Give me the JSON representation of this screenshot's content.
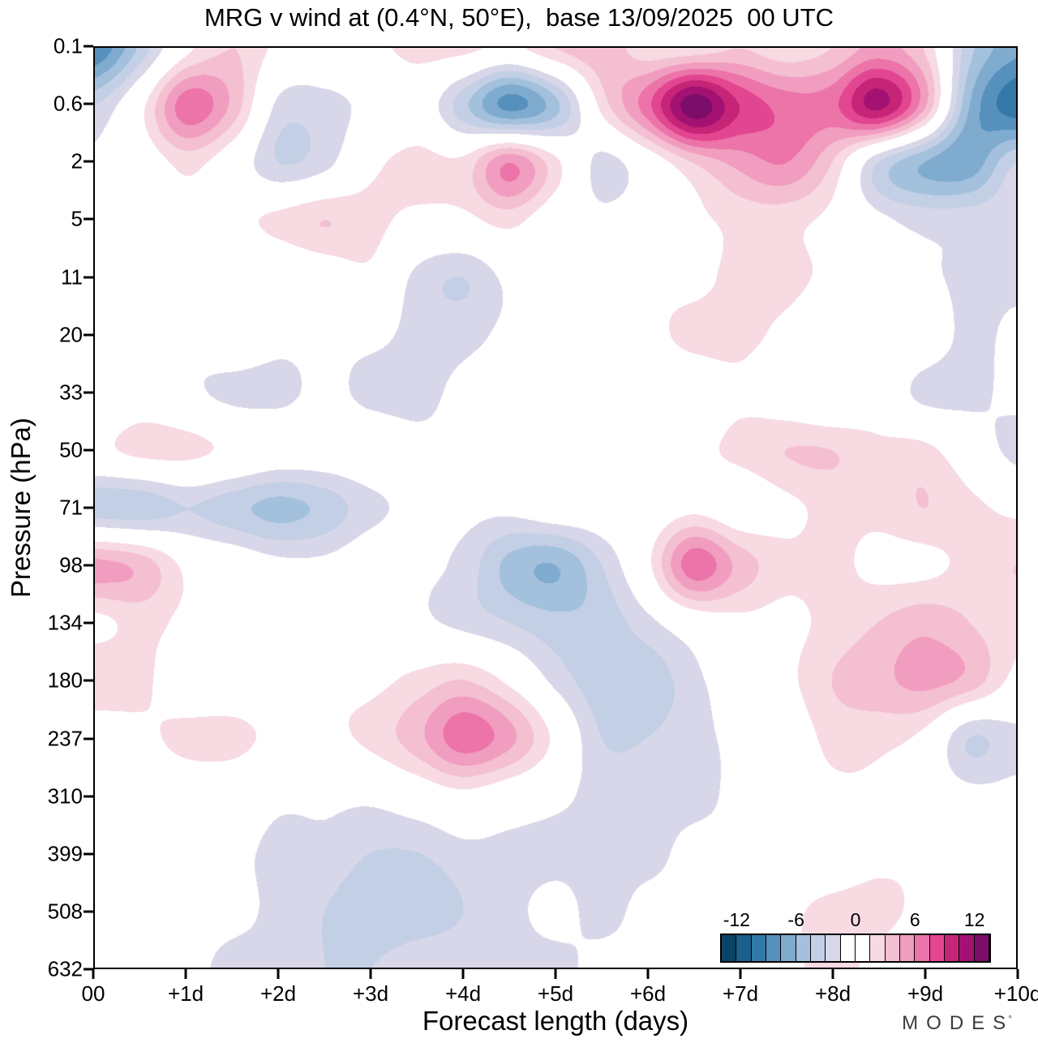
{
  "chart_data": {
    "type": "heatmap",
    "title": "MRG v wind at (0.4°N, 50°E),  base 13/09/2025  00 UTC",
    "xlabel": "Forecast length (days)",
    "ylabel": "Pressure (hPa)",
    "x_ticks": [
      "00",
      "+1d",
      "+2d",
      "+3d",
      "+4d",
      "+5d",
      "+6d",
      "+7d",
      "+8d",
      "+9d",
      "+10d"
    ],
    "y_ticks": [
      "0.1",
      "0.6",
      "2",
      "5",
      "11",
      "20",
      "33",
      "50",
      "71",
      "98",
      "134",
      "180",
      "237",
      "310",
      "399",
      "508",
      "632"
    ],
    "x_range_days": [
      0,
      10
    ],
    "x_step_days": 0.5,
    "colorbar": {
      "tick_labels": [
        "-12",
        "-6",
        "0",
        "6",
        "12"
      ],
      "tick_values": [
        -12,
        -6,
        0,
        6,
        12
      ],
      "min": -13.5,
      "max": 13.5,
      "step": 1.5,
      "colors": [
        "#0b4468",
        "#1a608c",
        "#3379a8",
        "#5691bd",
        "#7fabcf",
        "#a3c0dc",
        "#c2cfe4",
        "#d8d7e9",
        "#ffffff",
        "#ffffff",
        "#f7dae2",
        "#f5bfd2",
        "#f19dbf",
        "#ec74a9",
        "#e34691",
        "#c62577",
        "#a31273",
        "#7c0d68"
      ]
    },
    "values": [
      [
        -9,
        -4,
        1,
        3,
        1,
        0,
        1,
        2,
        2,
        1,
        3,
        4,
        2,
        2,
        3,
        2,
        3,
        5,
        3,
        -4,
        -7
      ],
      [
        -3,
        1,
        7,
        4,
        -2,
        -2,
        -1,
        0,
        -4,
        -8,
        -5,
        2,
        7,
        13,
        9,
        7,
        7,
        11,
        5,
        -6,
        -10
      ],
      [
        -1,
        0,
        2,
        0,
        -3,
        -2,
        1,
        2,
        2,
        6,
        2,
        -2,
        0,
        3,
        5,
        6,
        3,
        -3,
        -6,
        -7,
        -3
      ],
      [
        0,
        -1,
        1,
        1,
        2,
        3,
        2,
        1,
        1,
        2,
        0,
        -1,
        0,
        1,
        2,
        2,
        1,
        -1,
        -2,
        -2,
        -2
      ],
      [
        -1,
        -1,
        0,
        -1,
        -1,
        0,
        1,
        -2,
        -3,
        -1,
        0,
        0,
        1,
        1,
        2,
        2,
        1,
        0,
        -1,
        -2,
        -2
      ],
      [
        0,
        -1,
        -1,
        0,
        -1,
        -1,
        -1,
        -2,
        -2,
        -1,
        0,
        1,
        1,
        2,
        2,
        1,
        0,
        1,
        0,
        -2,
        -1
      ],
      [
        -1,
        0,
        -1,
        -2,
        -2,
        -1,
        -2,
        -2,
        -1,
        0,
        0,
        0,
        0,
        0,
        1,
        0,
        -1,
        0,
        -2,
        -2,
        -1
      ],
      [
        1,
        2,
        2,
        1,
        0,
        0,
        0,
        -1,
        -1,
        0,
        0,
        0,
        1,
        1,
        2,
        3,
        3,
        2,
        2,
        0,
        -2
      ],
      [
        -4,
        -4,
        -3,
        -4,
        -5,
        -4,
        -2,
        -1,
        -1,
        -1,
        0,
        0,
        0,
        1,
        0,
        1,
        2,
        2,
        3,
        2,
        1
      ],
      [
        5,
        4,
        1,
        0,
        -1,
        -1,
        0,
        -1,
        -2,
        -5,
        -6,
        -3,
        1,
        7,
        4,
        2,
        2,
        1,
        1,
        2,
        3
      ],
      [
        1,
        2,
        1,
        0,
        0,
        0,
        0,
        -1,
        -2,
        -3,
        -4,
        -4,
        -2,
        0,
        1,
        1,
        2,
        3,
        4,
        3,
        2
      ],
      [
        3,
        2,
        0,
        0,
        0,
        1,
        1,
        2,
        3,
        1,
        -2,
        -4,
        -4,
        -2,
        0,
        1,
        3,
        4,
        5,
        4,
        1
      ],
      [
        0,
        1,
        2,
        2,
        1,
        1,
        2,
        4,
        7,
        5,
        1,
        -3,
        -3,
        -2,
        -1,
        0,
        2,
        2,
        1,
        -3,
        -2
      ],
      [
        0,
        0,
        0,
        0,
        -1,
        -1,
        -1,
        0,
        1,
        0,
        -1,
        -2,
        -2,
        -2,
        -1,
        0,
        1,
        1,
        0,
        -1,
        -1
      ],
      [
        0,
        0,
        -1,
        -1,
        -2,
        -2,
        -3,
        -3,
        -2,
        -2,
        -2,
        -2,
        -2,
        -1,
        -1,
        0,
        0,
        1,
        1,
        0,
        0
      ],
      [
        0,
        -1,
        -1,
        -1,
        -2,
        -3,
        -4,
        -4,
        -3,
        -2,
        -1,
        -2,
        -1,
        -1,
        0,
        1,
        2,
        2,
        1,
        0,
        0
      ],
      [
        -1,
        -1,
        -1,
        -2,
        -2,
        -3,
        -3,
        -2,
        -2,
        -2,
        -2,
        -1,
        -1,
        0,
        0,
        1,
        2,
        1,
        0,
        0,
        0
      ]
    ]
  },
  "brand": {
    "label": "MODES",
    "mark": "°"
  }
}
